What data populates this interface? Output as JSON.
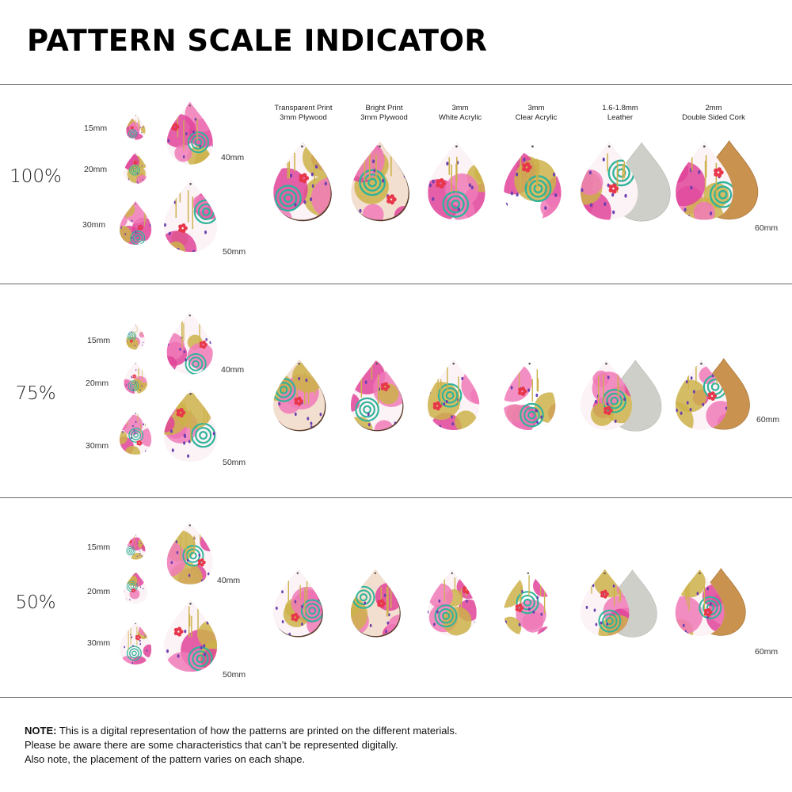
{
  "title": "PATTERN SCALE INDICATOR",
  "materials": [
    {
      "line1": "Transparent Print",
      "line2": "3mm Plywood",
      "kind": "plywood"
    },
    {
      "line1": "Bright Print",
      "line2": "3mm Plywood",
      "kind": "plywood"
    },
    {
      "line1": "3mm",
      "line2": "White Acrylic",
      "kind": "acrylic"
    },
    {
      "line1": "3mm",
      "line2": "Clear Acrylic",
      "kind": "clear"
    },
    {
      "line1": "1.6-1.8mm",
      "line2": "Leather",
      "kind": "leather"
    },
    {
      "line1": "2mm",
      "line2": "Double Sided Cork",
      "kind": "cork"
    }
  ],
  "sizes": {
    "s15": "15mm",
    "s20": "20mm",
    "s30": "30mm",
    "s40": "40mm",
    "s50": "50mm",
    "s60": "60mm"
  },
  "sections": [
    {
      "scale": "100%"
    },
    {
      "scale": "75%"
    },
    {
      "scale": "50%"
    }
  ],
  "note": {
    "bold": "NOTE:",
    "line1": " This is a digital representation of how the patterns are printed on the different materials.",
    "line2": "Please be aware there are some characteristics that can’t be represented digitally.",
    "line3": "Also note, the placement of the pattern varies on each shape."
  },
  "colors": {
    "magenta": "#e0449a",
    "pink": "#f07ab8",
    "mustard": "#cdb14a",
    "teal": "#2fb39a",
    "purple": "#6b3fb0",
    "red": "#e8364a",
    "plywood_edge": "#5a3a2a",
    "leather_back": "#cfcfca",
    "cork_back": "#c9924e"
  }
}
